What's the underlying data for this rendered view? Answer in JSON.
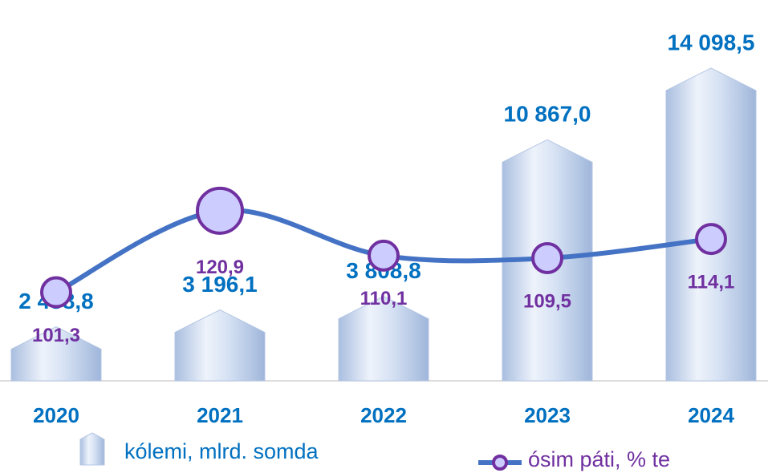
{
  "chart_data": {
    "type": "bar-line",
    "categories": [
      "2020",
      "2021",
      "2022",
      "2023",
      "2024"
    ],
    "series": [
      {
        "name": "kólemi, mlrd. somda",
        "type": "bar",
        "color": "#c9daf2",
        "values": [
          2438.8,
          3196.1,
          3808.8,
          10867.0,
          14098.5
        ],
        "value_labels": [
          "2 438,8",
          "3 196,1",
          "3 808,8",
          "10 867,0",
          "14 098,5"
        ]
      },
      {
        "name": "ósim páti, % te",
        "type": "line",
        "axis": "y2",
        "color": "#4472c4",
        "marker_color": "#ccccff",
        "marker_edge": "#7030a0",
        "values": [
          101.3,
          120.9,
          110.1,
          109.5,
          114.1
        ],
        "value_labels": [
          "101,3",
          "120,9",
          "110,1",
          "109,5",
          "114,1"
        ]
      }
    ],
    "ylim": [
      0,
      15000
    ],
    "y2lim": [
      80,
      160
    ],
    "grid": false
  }
}
